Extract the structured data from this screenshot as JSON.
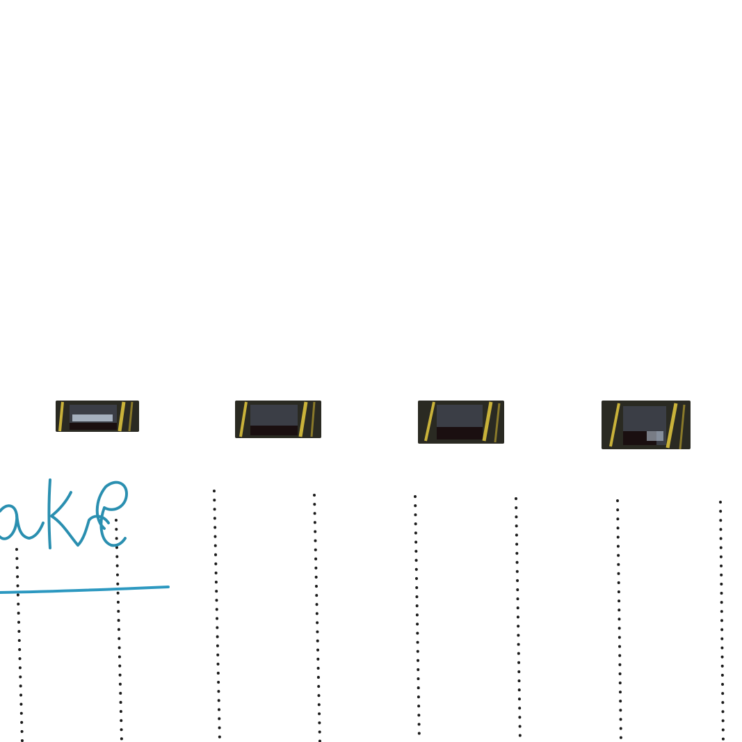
{
  "scene": {
    "background_color": "#ffffff",
    "handwriting": {
      "fragment": "ake",
      "ink_color": "#2a8fb0",
      "underline_color": "#2c98c0"
    },
    "dotted_guide_color": "#1b1b1b",
    "binding_holes": {
      "count": 4,
      "frame_color": "#2a2a22",
      "inner_color": "#3b3e46",
      "shadow_color": "#1a0f10",
      "highlight_color": "#b8c4d4",
      "band_color": "#c9b23a"
    }
  }
}
